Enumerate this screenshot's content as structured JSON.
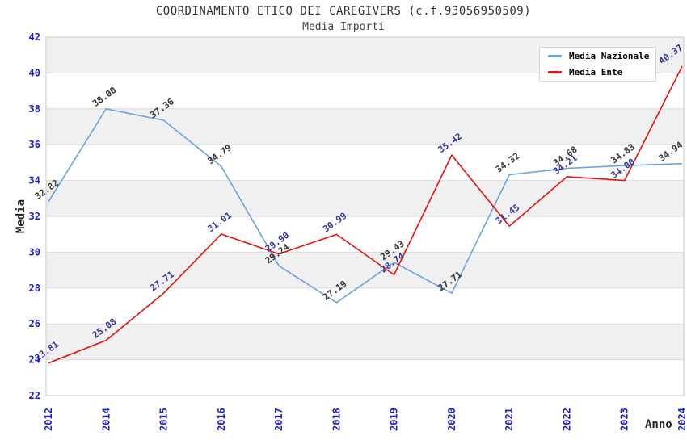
{
  "header": {
    "title": "COORDINAMENTO ETICO DEI CAREGIVERS (c.f.93056950509)",
    "subtitle": "Media Importi"
  },
  "chart_data": {
    "type": "line",
    "title": "COORDINAMENTO ETICO DEI CAREGIVERS (c.f.93056950509)",
    "subtitle": "Media Importi",
    "xlabel": "Anno",
    "ylabel": "Media",
    "ylim": [
      22,
      42
    ],
    "ytick_step": 2,
    "grid": true,
    "legend_position": "top-right",
    "categories": [
      "2012",
      "2014",
      "2015",
      "2016",
      "2017",
      "2018",
      "2019",
      "2020",
      "2021",
      "2022",
      "2023",
      "2024"
    ],
    "series": [
      {
        "name": "Media Nazionale",
        "color": "#6ba3df",
        "label_color": "#333333",
        "values": [
          32.82,
          38.0,
          37.36,
          34.79,
          29.24,
          27.19,
          29.43,
          27.71,
          34.32,
          34.68,
          34.83,
          34.94
        ]
      },
      {
        "name": "Media Ente",
        "color": "#ea1010",
        "label_color": "#34349b",
        "values": [
          23.81,
          25.08,
          27.71,
          31.01,
          29.9,
          30.99,
          28.74,
          35.42,
          31.45,
          34.21,
          34.0,
          40.37
        ]
      }
    ],
    "styles": {
      "band_colors": [
        "#ffffff",
        "#f0f0f0"
      ],
      "grid_color": "#d9d9d9",
      "border_color": "#c9c9c9",
      "tick_color": "#1b1bd1",
      "axis_title_color": "#222222"
    }
  }
}
